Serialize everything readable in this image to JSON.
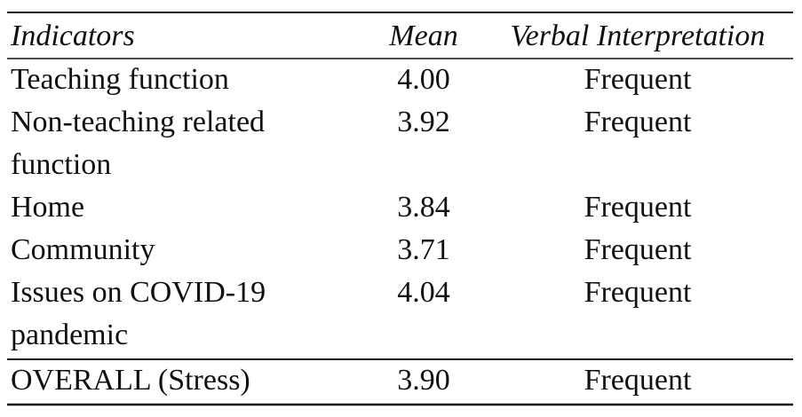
{
  "table": {
    "header": [
      "Indicators",
      "Mean",
      "Verbal Interpretation"
    ],
    "rows": [
      [
        [
          "Teaching function"
        ],
        "4.00",
        "Frequent"
      ],
      [
        [
          "Non-teaching related",
          "function"
        ],
        "3.92",
        "Frequent"
      ],
      [
        [
          "Home"
        ],
        "3.84",
        "Frequent"
      ],
      [
        [
          "Community"
        ],
        "3.71",
        "Frequent"
      ],
      [
        [
          "Issues on COVID-19",
          "pandemic"
        ],
        "4.04",
        "Frequent"
      ]
    ],
    "overall": [
      [
        "OVERALL (Stress)"
      ],
      "3.90",
      "Frequent"
    ]
  }
}
